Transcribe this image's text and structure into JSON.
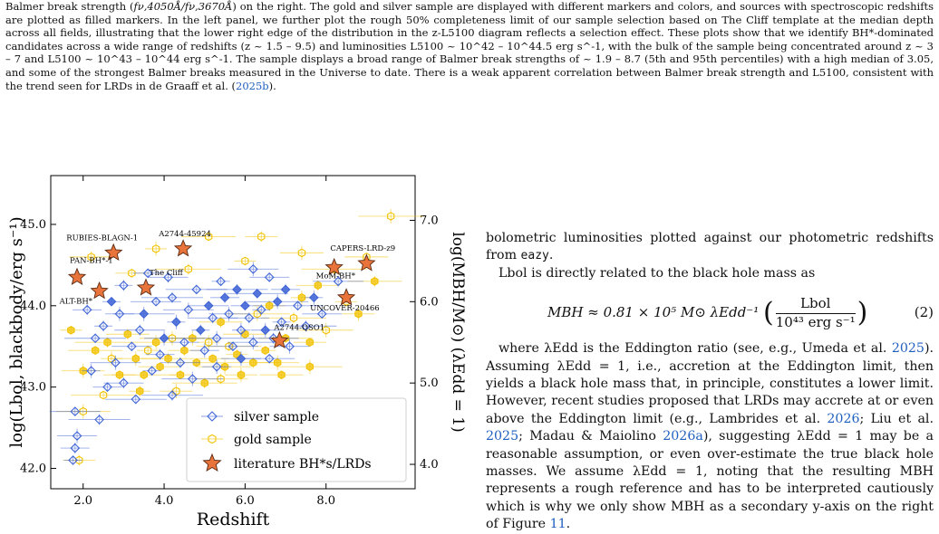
{
  "caption": {
    "text_a": "Balmer break strength (",
    "text_b": ") on the right. The gold and silver sample are displayed with different markers and colors, and sources with spectroscopic redshifts are plotted as filled markers. In the left panel, we further plot the rough 50% completeness limit of our sample selection based on The Cliff template at the median depth across all fields, illustrating that the lower right edge of the distribution in the z-L5100 diagram reflects a selection effect. These plots show that we identify BH*-dominated candidates across a wide range of redshifts (z ~ 1.5 – 9.5) and luminosities L5100 ~ 10^42 – 10^44.5 erg s^-1, with the bulk of the sample being concentrated around z ~ 3 – 7 and L5100 ~ 10^43 – 10^44 erg s^-1. The sample displays a broad range of Balmer break strengths of ~ 1.9 – 8.7 (5th and 95th percentiles) with a high median of 3.05, and some of the strongest Balmer breaks measured in the Universe to date. There is a weak apparent correlation between Balmer break strength and L5100, consistent with the trend seen for LRDs in de Graaff et al. (",
    "ratio": "fν,4050Å/fν,3670Å",
    "citation_year": "2025b",
    "text_end": ")."
  },
  "body_text": {
    "p1": "bolometric luminosities plotted against our photometric redshifts from",
    "p1_code": "eazy",
    "p1_end": ".",
    "p2": "Lbol is directly related to the black hole mass as",
    "eq_lhs": "MBH ≈ 0.81 × 10⁵ M⊙ λEdd⁻¹",
    "eq_num": "Lbol",
    "eq_den": "10⁴³ erg s⁻¹",
    "eq_label": "(2)",
    "p3_a": "where λEdd is the Eddington ratio (see, e.g., Umeda et al.",
    "p3_y1": "2025",
    "p3_b": "). Assuming λEdd = 1, i.e., accretion at the Eddington limit, then yields a black hole mass that, in principle, constitutes a lower limit. However, recent studies proposed that LRDs may accrete at or even above the Eddington limit (e.g., Lambrides et al.",
    "p3_y2": "2026",
    "p3_c": "; Liu et al.",
    "p3_y3": "2025",
    "p3_d": "; Madau & Maiolino",
    "p3_y4": "2026a",
    "p3_e": "), suggesting λEdd = 1 may be a reasonable assumption, or even over-estimate the true black hole masses. We assume λEdd = 1, noting that the resulting MBH represents a rough reference and has to be interpreted cautiously which is why we only show MBH as a secondary y-axis on the right of Figure",
    "p3_fig": "11",
    "p3_f": "."
  },
  "chart_data": {
    "type": "scatter",
    "xlabel": "Redshift",
    "ylabel": "log(Lbol, blackbody/erg s⁻¹)",
    "y2label": "log(MBH/M⊙) (λEdd = 1)",
    "xlim": [
      1.2,
      10.2
    ],
    "ylim": [
      41.75,
      45.6
    ],
    "xticks": [
      "2.0",
      "4.0",
      "6.0",
      "8.0"
    ],
    "yticks": [
      "42.0",
      "43.0",
      "44.0",
      "45.0"
    ],
    "y2ticks": [
      "4.0",
      "5.0",
      "6.0",
      "7.0"
    ],
    "legend": {
      "placement": "bottom-right",
      "entries": [
        "silver sample",
        "gold sample",
        "literature BH*s/LRDs"
      ]
    },
    "colors": {
      "silver": "#3f64d6",
      "gold": "#f2c200",
      "star": "#e8743b"
    },
    "series": [
      {
        "name": "silver sample",
        "points": [
          [
            1.75,
            42.1,
            0
          ],
          [
            1.8,
            42.25,
            0
          ],
          [
            1.85,
            42.4,
            0
          ],
          [
            1.8,
            42.7,
            0
          ],
          [
            2.4,
            42.6,
            0
          ],
          [
            2.2,
            43.2,
            0
          ],
          [
            2.6,
            43.0,
            0
          ],
          [
            3.0,
            43.05,
            0
          ],
          [
            2.8,
            43.3,
            0
          ],
          [
            2.3,
            43.6,
            0
          ],
          [
            2.5,
            43.75,
            0
          ],
          [
            2.9,
            43.9,
            0
          ],
          [
            3.2,
            43.5,
            0
          ],
          [
            3.4,
            43.7,
            0
          ],
          [
            3.5,
            43.9,
            1
          ],
          [
            3.7,
            43.2,
            0
          ],
          [
            3.9,
            43.4,
            0
          ],
          [
            4.0,
            43.6,
            1
          ],
          [
            3.8,
            44.05,
            0
          ],
          [
            4.2,
            44.1,
            0
          ],
          [
            4.3,
            43.8,
            1
          ],
          [
            4.5,
            43.55,
            0
          ],
          [
            4.4,
            43.3,
            0
          ],
          [
            4.6,
            43.95,
            0
          ],
          [
            4.8,
            44.2,
            0
          ],
          [
            4.9,
            43.7,
            1
          ],
          [
            5.0,
            43.45,
            0
          ],
          [
            5.1,
            44.0,
            1
          ],
          [
            5.2,
            43.85,
            0
          ],
          [
            5.3,
            43.6,
            0
          ],
          [
            5.4,
            44.3,
            0
          ],
          [
            5.5,
            44.1,
            1
          ],
          [
            5.6,
            43.9,
            0
          ],
          [
            5.7,
            43.5,
            0
          ],
          [
            5.8,
            44.2,
            1
          ],
          [
            5.9,
            43.7,
            0
          ],
          [
            6.0,
            44.0,
            1
          ],
          [
            6.1,
            43.85,
            0
          ],
          [
            6.2,
            43.55,
            0
          ],
          [
            6.3,
            44.15,
            1
          ],
          [
            6.4,
            43.95,
            0
          ],
          [
            6.5,
            43.7,
            1
          ],
          [
            6.6,
            44.35,
            0
          ],
          [
            6.7,
            43.6,
            0
          ],
          [
            6.8,
            44.05,
            1
          ],
          [
            6.9,
            43.8,
            0
          ],
          [
            7.0,
            44.2,
            1
          ],
          [
            7.1,
            43.5,
            0
          ],
          [
            7.3,
            44.0,
            0
          ],
          [
            7.5,
            43.75,
            0
          ],
          [
            7.7,
            44.1,
            1
          ],
          [
            3.6,
            44.4,
            0
          ],
          [
            4.1,
            44.35,
            0
          ],
          [
            6.2,
            44.45,
            0
          ],
          [
            3.3,
            42.85,
            0
          ],
          [
            3.0,
            44.25,
            0
          ],
          [
            5.3,
            43.25,
            0
          ],
          [
            7.9,
            43.9,
            0
          ],
          [
            8.3,
            44.3,
            0
          ],
          [
            4.7,
            43.1,
            0
          ],
          [
            2.7,
            44.05,
            1
          ],
          [
            2.1,
            43.95,
            0
          ],
          [
            5.9,
            43.35,
            1
          ],
          [
            6.6,
            43.35,
            0
          ],
          [
            4.2,
            42.9,
            0
          ]
        ]
      },
      {
        "name": "gold sample",
        "points": [
          [
            1.7,
            43.7,
            1
          ],
          [
            1.9,
            42.1,
            0
          ],
          [
            2.0,
            43.2,
            1
          ],
          [
            2.3,
            43.45,
            1
          ],
          [
            2.6,
            43.55,
            1
          ],
          [
            2.7,
            43.35,
            0
          ],
          [
            2.9,
            43.15,
            1
          ],
          [
            3.1,
            43.65,
            1
          ],
          [
            3.3,
            43.35,
            1
          ],
          [
            3.5,
            43.15,
            1
          ],
          [
            3.6,
            43.45,
            0
          ],
          [
            3.8,
            43.55,
            1
          ],
          [
            3.9,
            43.25,
            1
          ],
          [
            4.1,
            43.35,
            1
          ],
          [
            4.2,
            43.6,
            0
          ],
          [
            4.4,
            43.15,
            1
          ],
          [
            4.5,
            43.45,
            1
          ],
          [
            4.7,
            43.6,
            1
          ],
          [
            4.8,
            43.3,
            1
          ],
          [
            5.0,
            43.05,
            1
          ],
          [
            5.1,
            43.55,
            0
          ],
          [
            5.2,
            43.35,
            1
          ],
          [
            5.4,
            43.8,
            1
          ],
          [
            5.5,
            43.25,
            1
          ],
          [
            5.6,
            43.5,
            0
          ],
          [
            5.8,
            43.4,
            1
          ],
          [
            5.9,
            43.15,
            1
          ],
          [
            6.0,
            43.65,
            1
          ],
          [
            6.2,
            43.3,
            1
          ],
          [
            6.3,
            43.9,
            0
          ],
          [
            6.5,
            43.45,
            1
          ],
          [
            6.6,
            44.0,
            1
          ],
          [
            6.8,
            43.3,
            1
          ],
          [
            7.0,
            43.6,
            1
          ],
          [
            7.2,
            43.85,
            0
          ],
          [
            7.4,
            44.1,
            1
          ],
          [
            7.6,
            43.55,
            1
          ],
          [
            7.8,
            44.25,
            1
          ],
          [
            8.0,
            43.7,
            0
          ],
          [
            8.2,
            44.45,
            1
          ],
          [
            8.5,
            44.05,
            0
          ],
          [
            8.8,
            43.9,
            1
          ],
          [
            9.0,
            44.6,
            0
          ],
          [
            9.2,
            44.3,
            1
          ],
          [
            9.6,
            45.1,
            0
          ],
          [
            6.0,
            44.55,
            0
          ],
          [
            6.4,
            44.85,
            0
          ],
          [
            7.4,
            44.65,
            0
          ],
          [
            5.1,
            44.85,
            0
          ],
          [
            4.6,
            44.45,
            0
          ],
          [
            3.8,
            44.7,
            0
          ],
          [
            3.2,
            44.4,
            0
          ],
          [
            2.2,
            44.6,
            0
          ],
          [
            2.0,
            42.7,
            0
          ],
          [
            2.5,
            42.9,
            0
          ],
          [
            3.4,
            42.95,
            1
          ],
          [
            4.3,
            42.95,
            0
          ],
          [
            6.9,
            43.15,
            1
          ],
          [
            5.4,
            43.1,
            0
          ],
          [
            7.6,
            43.25,
            1
          ]
        ]
      }
    ],
    "literature": [
      {
        "label": "RUBIES-BLAGN-1",
        "x": 2.75,
        "y": 44.65
      },
      {
        "label": "A2744-45924",
        "x": 4.47,
        "y": 44.7
      },
      {
        "label": "PAN-BH*-1",
        "x": 1.85,
        "y": 44.35
      },
      {
        "label": "The Cliff",
        "x": 3.55,
        "y": 44.22
      },
      {
        "label": "ALT-BH*",
        "x": 2.4,
        "y": 44.18
      },
      {
        "label": "CAPERS-LRD-z9",
        "x": 9.0,
        "y": 44.52
      },
      {
        "label": "MoM-BH*",
        "x": 8.2,
        "y": 44.47
      },
      {
        "label": "UNCOVER-20466",
        "x": 8.5,
        "y": 44.1
      },
      {
        "label": "A2744-QSO1",
        "x": 6.85,
        "y": 43.57
      }
    ]
  }
}
